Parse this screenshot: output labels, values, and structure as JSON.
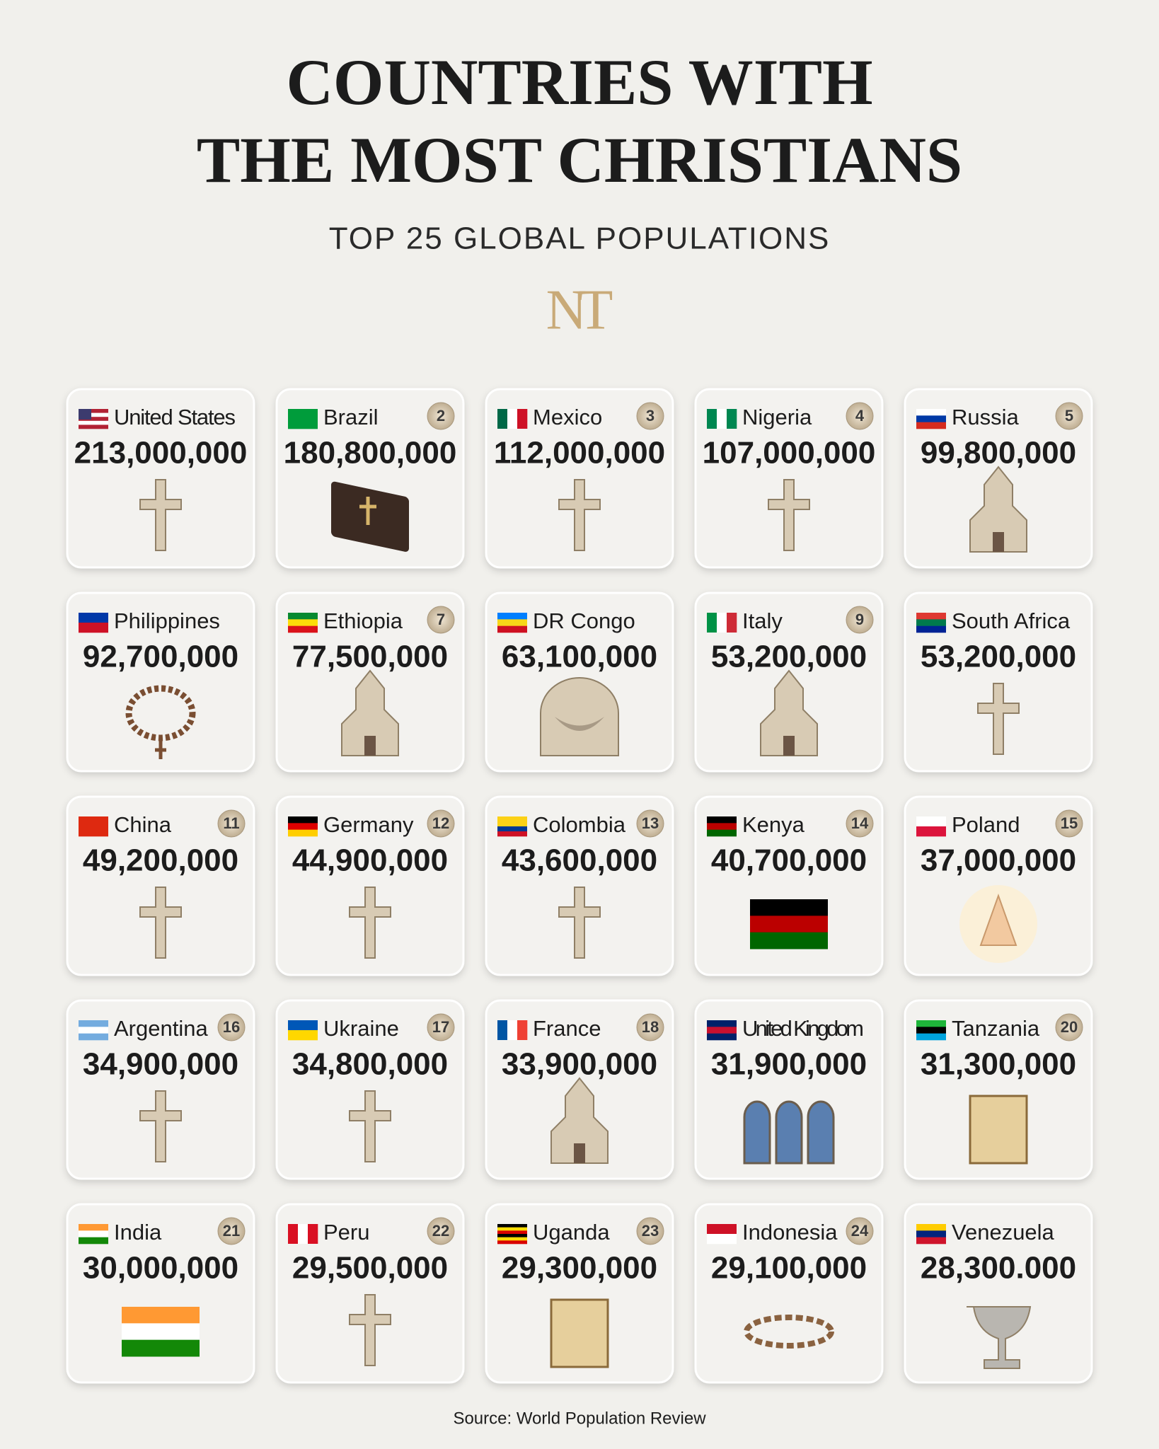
{
  "header": {
    "title_lines": [
      "COUNTRIES WITH",
      "THE MOST CHRISTIANS"
    ],
    "subtitle": "TOP 25 GLOBAL POPULATIONS",
    "logo": "NT"
  },
  "cards": [
    {
      "country": "United States",
      "population": "213,000,000"
    },
    {
      "country": "Brazil",
      "population": "180,800,000",
      "rank": 2
    },
    {
      "country": "Mexico",
      "population": "112,000,000",
      "rank": 3
    },
    {
      "country": "Nigeria",
      "population": "107,000,000",
      "rank": 4
    },
    {
      "country": "Russia",
      "population": "99,800,000",
      "rank": 5
    },
    {
      "country": "Philippines",
      "population": "92,700,000"
    },
    {
      "country": "Ethiopia",
      "population": "77,500,000",
      "rank": 7
    },
    {
      "country": "DR Congo",
      "population": "63,100,000"
    },
    {
      "country": "Italy",
      "population": "53,200,000",
      "rank": 9
    },
    {
      "country": "South Africa",
      "population": "53,200,000"
    },
    {
      "country": "China",
      "population": "49,200,000",
      "rank": 11
    },
    {
      "country": "Germany",
      "population": "44,900,000",
      "rank": 12
    },
    {
      "country": "Colombia",
      "population": "43,600,000",
      "rank": 13
    },
    {
      "country": "Kenya",
      "population": "40,700,000",
      "rank": 14
    },
    {
      "country": "Poland",
      "population": "37,000,000",
      "rank": 15
    },
    {
      "country": "Argentina",
      "population": "34,900,000",
      "rank": 16
    },
    {
      "country": "Ukraine",
      "population": "34,800,000",
      "rank": 17
    },
    {
      "country": "France",
      "population": "33,900,000",
      "rank": 18
    },
    {
      "country": "United Kingdom",
      "population": "31,900,000"
    },
    {
      "country": "Tanzania",
      "population": "31,300,000",
      "rank": 20
    },
    {
      "country": "India",
      "population": "30,000,000",
      "rank": 21
    },
    {
      "country": "Peru",
      "population": "29,500,000",
      "rank": 22
    },
    {
      "country": "Uganda",
      "population": "29,300,000",
      "rank": 23
    },
    {
      "country": "Indonesia",
      "population": "29,100,000",
      "rank": 24
    },
    {
      "country": "Venezuela",
      "population": "28,300.000"
    }
  ],
  "source": "Source: World Population Review"
}
